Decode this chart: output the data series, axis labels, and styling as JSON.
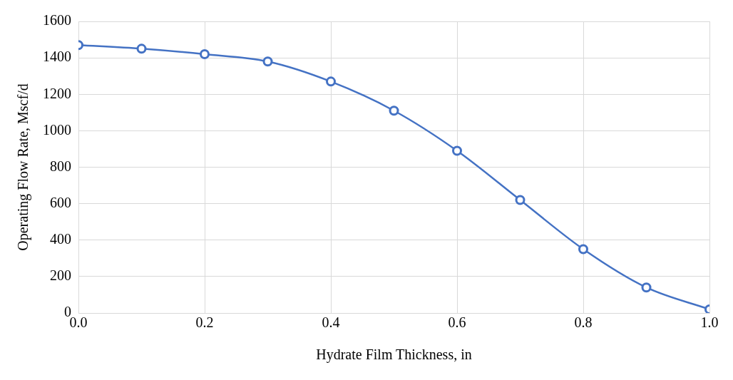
{
  "chart_data": {
    "type": "line",
    "xlabel": "Hydrate Film Thickness, in",
    "ylabel": "Operating Flow Rate, Mscf/d",
    "x": [
      0,
      0.1,
      0.2,
      0.3,
      0.4,
      0.5,
      0.6,
      0.7,
      0.8,
      0.9,
      1.0
    ],
    "series": [
      {
        "color": "#4472c4",
        "values": [
          1470,
          1450,
          1420,
          1380,
          1270,
          1110,
          890,
          620,
          350,
          140,
          20
        ]
      }
    ],
    "xlim": [
      0,
      1
    ],
    "xticks": [
      {
        "value": 0,
        "label": "0.0"
      },
      {
        "value": 0.2,
        "label": "0.2"
      },
      {
        "value": 0.4,
        "label": "0.4"
      },
      {
        "value": 0.6,
        "label": "0.6"
      },
      {
        "value": 0.8,
        "label": "0.8"
      },
      {
        "value": 1,
        "label": "1.0"
      }
    ],
    "ylim": [
      0,
      1600
    ],
    "yticks": [
      0,
      200,
      400,
      600,
      800,
      1000,
      1200,
      1400,
      1600
    ],
    "grid": true,
    "legend": false,
    "marker": "circle",
    "line_style": "solid"
  }
}
